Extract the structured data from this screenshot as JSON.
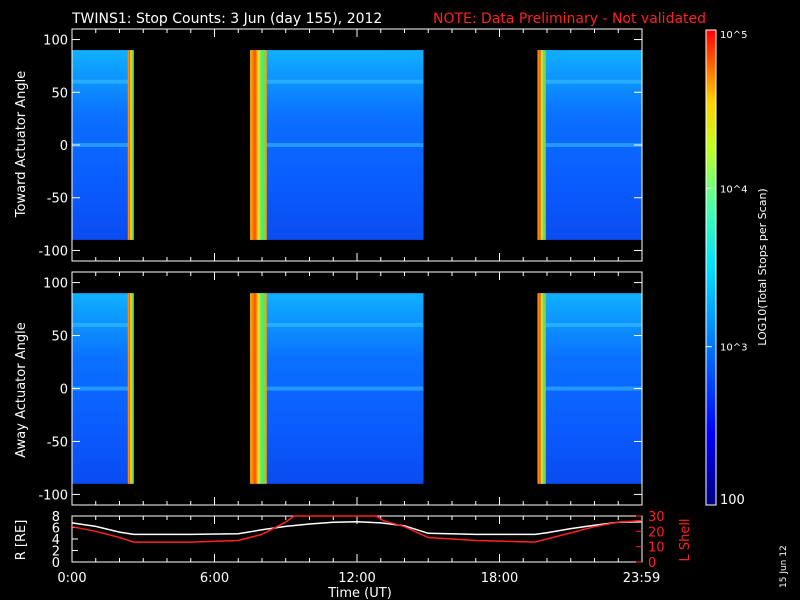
{
  "header": {
    "title": "TWINS1: Stop Counts:  3 Jun (day 155), 2012",
    "note": "NOTE: Data Preliminary - Not validated"
  },
  "date_stamp": "15 Jun 12",
  "chart_data": [
    {
      "type": "heatmap",
      "ylabel": "Toward Actuator Angle",
      "ylim": [
        -110,
        110
      ],
      "yticks": [
        "100",
        "50",
        "0",
        "-50",
        "-100"
      ],
      "xlim_hours": [
        0,
        24
      ],
      "angle_range": [
        -90,
        90
      ],
      "data_blocks_hours": [
        [
          0,
          2.6
        ],
        [
          7.5,
          14.8
        ],
        [
          19.6,
          24
        ]
      ],
      "bright_bands_hours": [
        [
          2.35,
          2.6
        ],
        [
          7.5,
          8.2
        ],
        [
          19.6,
          19.95
        ]
      ],
      "background_color": "#0b6bff",
      "band_color": "#ffd020"
    },
    {
      "type": "heatmap",
      "ylabel": "Away Actuator Angle",
      "ylim": [
        -110,
        110
      ],
      "yticks": [
        "100",
        "50",
        "0",
        "-50",
        "-100"
      ],
      "xlim_hours": [
        0,
        24
      ],
      "angle_range": [
        -90,
        90
      ],
      "data_blocks_hours": [
        [
          0,
          2.6
        ],
        [
          7.5,
          14.8
        ],
        [
          19.6,
          24
        ]
      ],
      "bright_bands_hours": [
        [
          2.35,
          2.6
        ],
        [
          7.5,
          8.2
        ],
        [
          19.6,
          19.95
        ]
      ],
      "background_color": "#0b6bff",
      "band_color": "#ffd020"
    },
    {
      "type": "line",
      "ylabel_left": "R [RE]",
      "ylabel_right": "L Shell",
      "left_yticks": [
        "8",
        "6",
        "4",
        "2",
        "0"
      ],
      "right_yticks": [
        "30",
        "20",
        "10",
        "0"
      ],
      "left_ylim": [
        0,
        8
      ],
      "right_ylim": [
        0,
        30
      ],
      "xlabel": "Time (UT)",
      "xticks": [
        "0:00",
        "6:00",
        "12:00",
        "18:00",
        "23:59"
      ],
      "series": [
        {
          "name": "R",
          "color": "#ffffff",
          "x": [
            0,
            1,
            2,
            2.6,
            3,
            5,
            7,
            8,
            9,
            10,
            11,
            12,
            13,
            14,
            15,
            17,
            19.5,
            20,
            21,
            22,
            23,
            24
          ],
          "y": [
            6.8,
            6.2,
            5.2,
            4.8,
            4.8,
            4.8,
            4.9,
            5.6,
            6.2,
            6.6,
            6.9,
            7.0,
            6.8,
            6.3,
            5.0,
            4.8,
            4.8,
            5.1,
            5.8,
            6.4,
            6.9,
            7.0
          ]
        },
        {
          "name": "L Shell",
          "color": "#ff2020",
          "x": [
            0,
            1,
            2,
            2.6,
            5,
            7,
            8,
            9,
            9.35,
            12.8,
            13.1,
            14,
            15,
            17,
            19.5,
            20,
            21,
            22,
            23,
            24
          ],
          "y": [
            23,
            20,
            16,
            13,
            13,
            14,
            18,
            26,
            30,
            30,
            27,
            23,
            16,
            14,
            13,
            15,
            19,
            23,
            26,
            27
          ]
        }
      ]
    }
  ],
  "colorbar": {
    "label": "LOG10(Total Stops per Scan)",
    "ticks": [
      "10^5",
      "10^4",
      "10^3",
      "100"
    ],
    "scale": "log",
    "range": [
      100,
      100000
    ]
  }
}
